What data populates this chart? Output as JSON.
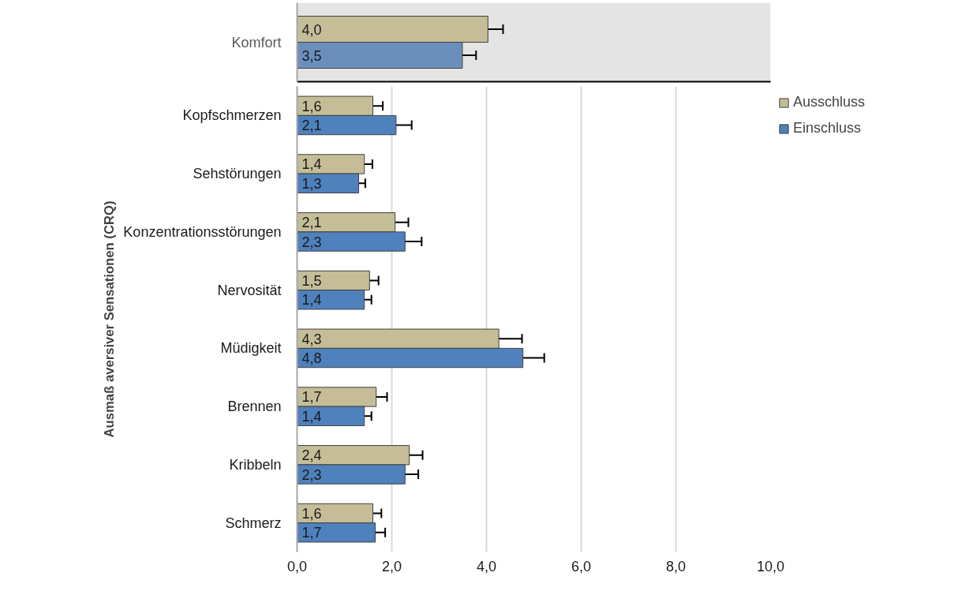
{
  "chart_data": [
    {
      "type": "bar",
      "orientation": "horizontal",
      "categories": [
        "Komfort"
      ],
      "series": [
        {
          "color": "#c4bd97",
          "values": [
            4.03
          ],
          "errors": [
            0.32
          ],
          "value_labels": [
            "4,0"
          ]
        },
        {
          "color": "#6b8fbd",
          "values": [
            3.49
          ],
          "errors": [
            0.29
          ],
          "value_labels": [
            "3,5"
          ]
        }
      ],
      "xlim": [
        0,
        10
      ],
      "xticks": [
        0,
        2,
        4,
        6,
        8,
        10
      ],
      "tick_labels": "y",
      "grid": "x",
      "legend": false,
      "bands": [
        {
          "axis": "x",
          "from": 0,
          "to": 10,
          "color": "#e4e4e4"
        }
      ]
    },
    {
      "type": "bar",
      "orientation": "horizontal",
      "ylabel": "Ausmaß aversiver Sensationen (CRQ)",
      "categories": [
        "Kopfschmerzen",
        "Sehstörungen",
        "Konzentrationsstörungen",
        "Nervosität",
        "Müdigkeit",
        "Brennen",
        "Kribbeln",
        "Schmerz"
      ],
      "series": [
        {
          "name": "Ausschluss",
          "color": "#c4bd97",
          "values": [
            1.6,
            1.42,
            2.07,
            1.53,
            4.26,
            1.67,
            2.37,
            1.6
          ],
          "errors": [
            0.21,
            0.17,
            0.28,
            0.19,
            0.49,
            0.23,
            0.28,
            0.18
          ],
          "value_labels": [
            "1,6",
            "1,4",
            "2,1",
            "1,5",
            "4,3",
            "1,7",
            "2,4",
            "1,6"
          ]
        },
        {
          "name": "Einschluss",
          "color": "#4f81bd",
          "values": [
            2.09,
            1.3,
            2.28,
            1.42,
            4.77,
            1.42,
            2.28,
            1.65
          ],
          "errors": [
            0.33,
            0.14,
            0.35,
            0.15,
            0.45,
            0.15,
            0.28,
            0.21
          ],
          "value_labels": [
            "2,1",
            "1,3",
            "2,3",
            "1,4",
            "4,8",
            "1,4",
            "2,3",
            "1,7"
          ]
        }
      ],
      "xlim": [
        0,
        10
      ],
      "xticks": [
        {
          "value": 0,
          "label": "0,0"
        },
        {
          "value": 2,
          "label": "2,0"
        },
        {
          "value": 4,
          "label": "4,0"
        },
        {
          "value": 6,
          "label": "6,0"
        },
        {
          "value": 8,
          "label": "8,0"
        },
        {
          "value": 10,
          "label": "10,0"
        }
      ],
      "grid": "x",
      "legend": "top right"
    }
  ]
}
